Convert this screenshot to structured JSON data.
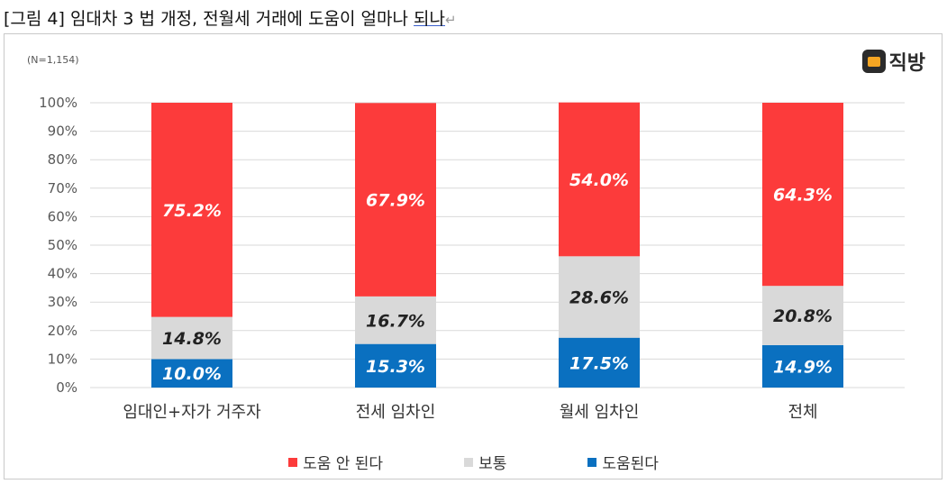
{
  "caption": {
    "prefix": "[그림 4]  임대차 3 법  개정,  전월세  거래에  도움이  얼마나 ",
    "tail": "되나",
    "ret": "↵"
  },
  "note": "(N=1,154)",
  "logo": {
    "text": "직방",
    "icon": "house-logo-icon"
  },
  "colors": {
    "help_no": "#fc3b3b",
    "neutral": "#d9d9d9",
    "help_yes": "#0a70c0"
  },
  "chart_data": {
    "type": "bar",
    "stacked": true,
    "categories": [
      "임대인+자가 거주자",
      "전세 임차인",
      "월세 임차인",
      "전체"
    ],
    "series": [
      {
        "name": "도움된다",
        "values": [
          10.0,
          15.3,
          17.5,
          14.9
        ],
        "color": "#0a70c0"
      },
      {
        "name": "보통",
        "values": [
          14.8,
          16.7,
          28.6,
          20.8
        ],
        "color": "#d9d9d9"
      },
      {
        "name": "도움 안 된다",
        "values": [
          75.2,
          67.9,
          54.0,
          64.3
        ],
        "color": "#fc3b3b"
      }
    ],
    "ylim": [
      0,
      100
    ],
    "yticks": [
      "0%",
      "10%",
      "20%",
      "30%",
      "40%",
      "50%",
      "60%",
      "70%",
      "80%",
      "90%",
      "100%"
    ],
    "grid": true,
    "legend_position": "bottom",
    "legend_order": [
      "도움 안 된다",
      "보통",
      "도움된다"
    ]
  }
}
